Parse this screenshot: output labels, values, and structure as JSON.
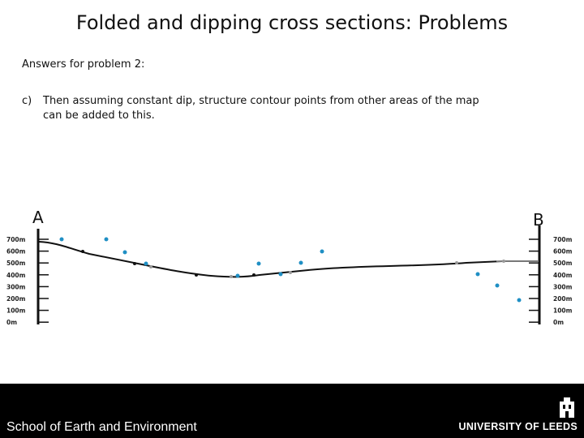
{
  "slide": {
    "title": "Folded and dipping cross sections: Problems",
    "subtitle": "Answers for problem 2:",
    "para_marker": "c)",
    "para_line1": "Then assuming constant dip, structure contour points from other areas of the map",
    "para_line2": "can be added to this."
  },
  "section": {
    "label_left": "A",
    "label_right": "B",
    "scale_left": [
      "700m",
      "600m",
      "500m",
      "400m",
      "300m",
      "200m",
      "100m",
      "0m"
    ],
    "scale_right": [
      "700m",
      "600m",
      "500m",
      "400m",
      "300m",
      "200m",
      "100m",
      "0m"
    ],
    "colors": {
      "topography": "#111111",
      "point_blue": "#1f8fc4",
      "point_grey": "#9a9a9a"
    }
  },
  "footer": {
    "left_text": "School of Earth and Environment",
    "right_text": "UNIVERSITY OF LEEDS",
    "crest_icon": "university-crest-icon"
  }
}
